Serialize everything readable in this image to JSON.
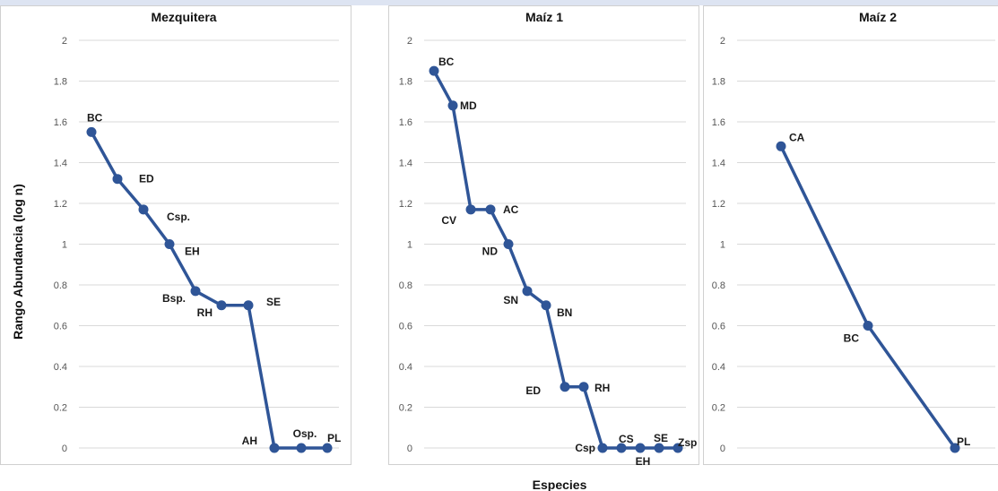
{
  "chart_data": [
    {
      "type": "line",
      "title": "Mezquitera",
      "ylim": [
        0,
        2
      ],
      "yticks": [
        "0",
        "0.2",
        "0.4",
        "0.6",
        "0.8",
        "1",
        "1.2",
        "1.4",
        "1.6",
        "1.8",
        "2"
      ],
      "grid": true,
      "series": [
        {
          "labels": [
            "BC",
            "ED",
            "Csp.",
            "EH",
            "Bsp.",
            "RH",
            "SE",
            "AH",
            "Osp.",
            "PL"
          ],
          "values": [
            1.55,
            1.32,
            1.17,
            1.0,
            0.77,
            0.7,
            0.7,
            0,
            0,
            0
          ]
        }
      ]
    },
    {
      "type": "line",
      "title": "Maíz 1",
      "ylim": [
        0,
        2
      ],
      "yticks": [
        "0",
        "0.2",
        "0.4",
        "0.6",
        "0.8",
        "1",
        "1.2",
        "1.4",
        "1.6",
        "1.8",
        "2"
      ],
      "grid": true,
      "series": [
        {
          "labels": [
            "BC",
            "MD",
            "CV",
            "AC",
            "ND",
            "SN",
            "BN",
            "ED",
            "RH",
            "Csp",
            "CS",
            "EH",
            "SE",
            "Zsp"
          ],
          "values": [
            1.85,
            1.68,
            1.17,
            1.17,
            1.0,
            0.77,
            0.7,
            0.3,
            0.3,
            0,
            0,
            0,
            0,
            0
          ]
        }
      ]
    },
    {
      "type": "line",
      "title": "Maíz 2",
      "ylim": [
        0,
        2
      ],
      "yticks": [
        "0",
        "0.2",
        "0.4",
        "0.6",
        "0.8",
        "1",
        "1.2",
        "1.4",
        "1.6",
        "1.8",
        "2"
      ],
      "grid": true,
      "series": [
        {
          "labels": [
            "CA",
            "BC",
            "PL"
          ],
          "values": [
            1.48,
            0.6,
            0
          ]
        }
      ]
    }
  ],
  "ylabel": "Rango Abundancia (log n)",
  "xlabel": "Especies",
  "colors": {
    "line": "#2f5597",
    "grid": "#d9d9d9",
    "border": "#d0d0d0"
  }
}
